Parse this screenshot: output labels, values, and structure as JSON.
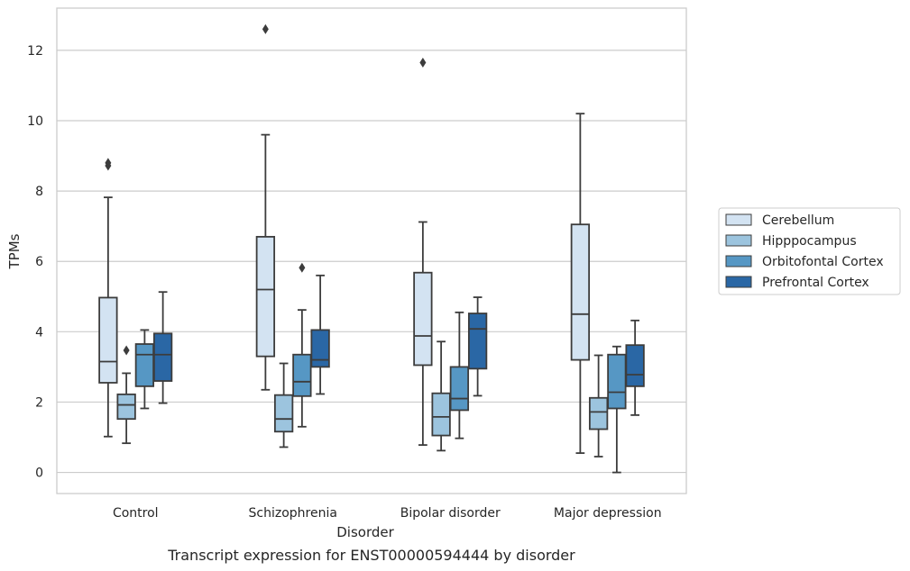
{
  "caption": "Transcript expression for ENST00000594444 by disorder",
  "chart_data": {
    "type": "boxplot",
    "xlabel": "Disorder",
    "ylabel": "TPMs",
    "ylim": [
      -0.6,
      13.2
    ],
    "yticks": [
      0,
      2,
      4,
      6,
      8,
      10,
      12
    ],
    "grid": "horizontal",
    "legend_position": "right",
    "categories": [
      "Control",
      "Schizophrenia",
      "Bipolar disorder",
      "Major depression"
    ],
    "series": [
      {
        "name": "Cerebellum",
        "color": "#d3e3f2",
        "boxes": [
          {
            "whislo": 1.02,
            "q1": 2.55,
            "med": 3.15,
            "q3": 4.97,
            "whishi": 7.82,
            "fliers": [
              8.72,
              8.8
            ]
          },
          {
            "whislo": 2.35,
            "q1": 3.3,
            "med": 5.2,
            "q3": 6.7,
            "whishi": 9.6,
            "fliers": [
              12.6
            ]
          },
          {
            "whislo": 0.78,
            "q1": 3.05,
            "med": 3.88,
            "q3": 5.68,
            "whishi": 7.12,
            "fliers": [
              11.65
            ]
          },
          {
            "whislo": 0.55,
            "q1": 3.2,
            "med": 4.5,
            "q3": 7.05,
            "whishi": 10.2,
            "fliers": []
          }
        ]
      },
      {
        "name": "Hipppocampus",
        "color": "#9cc4de",
        "boxes": [
          {
            "whislo": 0.83,
            "q1": 1.52,
            "med": 1.92,
            "q3": 2.22,
            "whishi": 2.82,
            "fliers": [
              3.47
            ]
          },
          {
            "whislo": 0.72,
            "q1": 1.16,
            "med": 1.52,
            "q3": 2.2,
            "whishi": 3.1,
            "fliers": []
          },
          {
            "whislo": 0.62,
            "q1": 1.05,
            "med": 1.58,
            "q3": 2.25,
            "whishi": 3.72,
            "fliers": []
          },
          {
            "whislo": 0.45,
            "q1": 1.23,
            "med": 1.72,
            "q3": 2.12,
            "whishi": 3.33,
            "fliers": []
          }
        ]
      },
      {
        "name": "Orbitofontal Cortex",
        "color": "#5697c4",
        "boxes": [
          {
            "whislo": 1.82,
            "q1": 2.45,
            "med": 3.35,
            "q3": 3.65,
            "whishi": 4.05,
            "fliers": []
          },
          {
            "whislo": 1.3,
            "q1": 2.17,
            "med": 2.58,
            "q3": 3.35,
            "whishi": 4.62,
            "fliers": [
              5.82
            ]
          },
          {
            "whislo": 0.97,
            "q1": 1.77,
            "med": 2.1,
            "q3": 3.0,
            "whishi": 4.55,
            "fliers": []
          },
          {
            "whislo": 0.0,
            "q1": 1.82,
            "med": 2.28,
            "q3": 3.35,
            "whishi": 3.58,
            "fliers": []
          }
        ]
      },
      {
        "name": "Prefrontal Cortex",
        "color": "#2a67a5",
        "boxes": [
          {
            "whislo": 1.97,
            "q1": 2.6,
            "med": 3.35,
            "q3": 3.95,
            "whishi": 5.13,
            "fliers": []
          },
          {
            "whislo": 2.23,
            "q1": 3.0,
            "med": 3.2,
            "q3": 4.05,
            "whishi": 5.6,
            "fliers": []
          },
          {
            "whislo": 2.18,
            "q1": 2.95,
            "med": 4.08,
            "q3": 4.52,
            "whishi": 4.98,
            "fliers": []
          },
          {
            "whislo": 1.63,
            "q1": 2.45,
            "med": 2.78,
            "q3": 3.62,
            "whishi": 4.32,
            "fliers": []
          }
        ]
      }
    ]
  },
  "colors": {
    "edge": "#3c3c3c",
    "grid": "#cccccc",
    "frame": "#cccccc"
  }
}
